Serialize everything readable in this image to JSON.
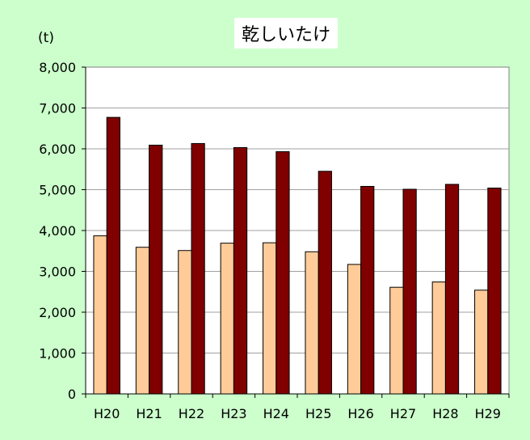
{
  "chart_data": {
    "type": "bar",
    "title": "乾しいたけ",
    "unit": "(t)",
    "xlabel": "",
    "ylabel": "",
    "ylim": [
      0,
      8000
    ],
    "yticks": [
      "0",
      "1,000",
      "2,000",
      "3,000",
      "4,000",
      "5,000",
      "6,000",
      "7,000",
      "8,000"
    ],
    "grid": true,
    "legend": "none",
    "categories": [
      "H20",
      "H21",
      "H22",
      "H23",
      "H24",
      "H25",
      "H26",
      "H27",
      "H28",
      "H29"
    ],
    "series": [
      {
        "color": "#ffcc99",
        "values": [
          3870,
          3590,
          3510,
          3690,
          3700,
          3480,
          3170,
          2610,
          2740,
          2540
        ]
      },
      {
        "color": "#800000",
        "values": [
          6770,
          6090,
          6130,
          6030,
          5930,
          5450,
          5080,
          5010,
          5130,
          5040
        ]
      }
    ],
    "background": "#ccffcc",
    "plot_background": "#ffffff"
  }
}
